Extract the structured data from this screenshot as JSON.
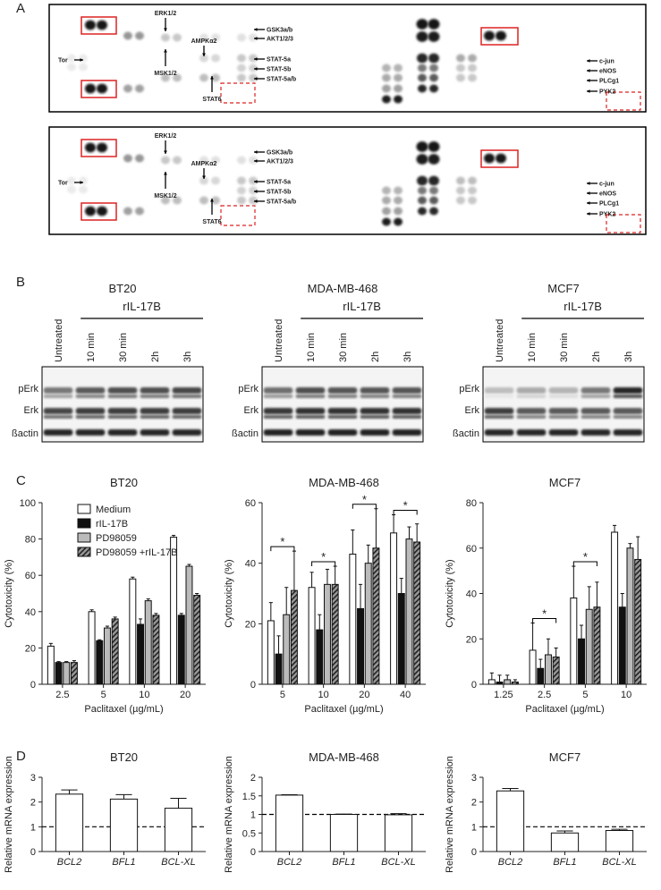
{
  "panel_labels": [
    "A",
    "B",
    "C",
    "D"
  ],
  "array_panel": {
    "labels": [
      "ERK1/2",
      "MSK1/2",
      "AMPKα2",
      "STAT6",
      "Tor",
      "GSK3a/b",
      "AKT1/2/3",
      "STAT-5a",
      "STAT-5b",
      "STAT-5a/b",
      "c-jun",
      "eNOS",
      "PLCg1",
      "PYK2"
    ]
  },
  "blot_panel": {
    "cell_lines": [
      "BT20",
      "MDA-MB-468",
      "MCF7"
    ],
    "treatment": "rIL-17B",
    "lanes": [
      "Untreated",
      "10 min",
      "30 min",
      "2h",
      "3h"
    ],
    "rows": [
      "pErk",
      "Erk",
      "ßactin"
    ]
  },
  "chart_data": [
    {
      "type": "bar",
      "title": "BT20",
      "x_label": "Paclitaxel (µg/mL)",
      "y_label": "Cytotoxicity (%)",
      "categories": [
        "2.5",
        "5",
        "10",
        "20"
      ],
      "ylim": [
        0,
        100
      ],
      "yticks": [
        0,
        20,
        40,
        60,
        80,
        100
      ],
      "legend": true,
      "series": [
        {
          "name": "Medium",
          "color": "#ffffff",
          "values": [
            21,
            40,
            58,
            81
          ],
          "errors": [
            1.5,
            1,
            1,
            1
          ]
        },
        {
          "name": "rIL-17B",
          "color": "#111111",
          "values": [
            12,
            24,
            33,
            38
          ],
          "errors": [
            0.5,
            0.5,
            3,
            1
          ]
        },
        {
          "name": "PD98059",
          "color": "#bbbbbb",
          "values": [
            12,
            31,
            46,
            65
          ],
          "errors": [
            0.5,
            1,
            1,
            1
          ]
        },
        {
          "name": "PD98059 +rIL-17B",
          "color": "#999999",
          "hatch": true,
          "values": [
            12,
            36,
            38,
            49
          ],
          "errors": [
            1,
            1,
            1,
            1
          ]
        }
      ]
    },
    {
      "type": "bar",
      "title": "MDA-MB-468",
      "x_label": "Paclitaxel (µg/mL)",
      "y_label": "Cytotoxicity (%)",
      "categories": [
        "5",
        "10",
        "20",
        "40"
      ],
      "ylim": [
        0,
        60
      ],
      "yticks": [
        0,
        20,
        40,
        60
      ],
      "significance": [
        "*",
        "*",
        "*",
        "*"
      ],
      "series": [
        {
          "color": "#ffffff",
          "values": [
            21,
            32,
            43,
            50
          ],
          "errors": [
            6,
            5,
            8,
            6
          ]
        },
        {
          "color": "#111111",
          "values": [
            10,
            18,
            25,
            30
          ],
          "errors": [
            6,
            5,
            8,
            5
          ]
        },
        {
          "color": "#bbbbbb",
          "values": [
            23,
            33,
            40,
            48
          ],
          "errors": [
            9,
            5,
            6,
            4
          ]
        },
        {
          "color": "#999999",
          "hatch": true,
          "values": [
            31,
            33,
            45,
            47
          ],
          "errors": [
            13,
            6,
            13,
            6
          ]
        }
      ]
    },
    {
      "type": "bar",
      "title": "MCF7",
      "x_label": "Paclitaxel (µg/mL)",
      "y_label": "Cytotoxicity (%)",
      "categories": [
        "1.25",
        "2.5",
        "5",
        "10"
      ],
      "ylim": [
        0,
        80
      ],
      "yticks": [
        0,
        20,
        40,
        60,
        80
      ],
      "significance": [
        null,
        "*",
        "*",
        null
      ],
      "series": [
        {
          "color": "#ffffff",
          "values": [
            2,
            15,
            38,
            67
          ],
          "errors": [
            3,
            12,
            14,
            3
          ]
        },
        {
          "color": "#111111",
          "values": [
            1,
            7,
            20,
            34
          ],
          "errors": [
            3,
            4,
            6,
            6
          ]
        },
        {
          "color": "#bbbbbb",
          "values": [
            2,
            13,
            33,
            60
          ],
          "errors": [
            2,
            7,
            10,
            2
          ]
        },
        {
          "color": "#999999",
          "hatch": true,
          "values": [
            1,
            12,
            34,
            55
          ],
          "errors": [
            1,
            4,
            11,
            10
          ]
        }
      ]
    },
    {
      "type": "bar",
      "title": "BT20",
      "y_label": "Relative mRNA expression",
      "categories": [
        "BCL2",
        "BFL1",
        "BCL-XL"
      ],
      "ylim": [
        0,
        3
      ],
      "yticks": [
        0,
        1,
        2,
        3
      ],
      "reference_line": 1,
      "series": [
        {
          "color": "#ffffff",
          "values": [
            2.32,
            2.12,
            1.75
          ],
          "errors": [
            0.17,
            0.18,
            0.4
          ]
        }
      ]
    },
    {
      "type": "bar",
      "title": "MDA-MB-468",
      "y_label": "Relative mRNA expression",
      "categories": [
        "BCL2",
        "BFL1",
        "BCL-XL"
      ],
      "ylim": [
        0,
        2
      ],
      "yticks": [
        0,
        0.5,
        1,
        1.5,
        2
      ],
      "reference_line": 1,
      "series": [
        {
          "color": "#ffffff",
          "values": [
            1.52,
            1.0,
            0.99
          ],
          "errors": [
            0.01,
            0.01,
            0.03
          ]
        }
      ]
    },
    {
      "type": "bar",
      "title": "MCF7",
      "y_label": "Relative mRNA expression",
      "categories": [
        "BCL2",
        "BFL1",
        "BCL-XL"
      ],
      "ylim": [
        0,
        3
      ],
      "yticks": [
        0,
        1,
        2,
        3
      ],
      "reference_line": 1,
      "series": [
        {
          "color": "#ffffff",
          "values": [
            2.45,
            0.75,
            0.85
          ],
          "errors": [
            0.1,
            0.08,
            0.05
          ]
        }
      ]
    }
  ]
}
